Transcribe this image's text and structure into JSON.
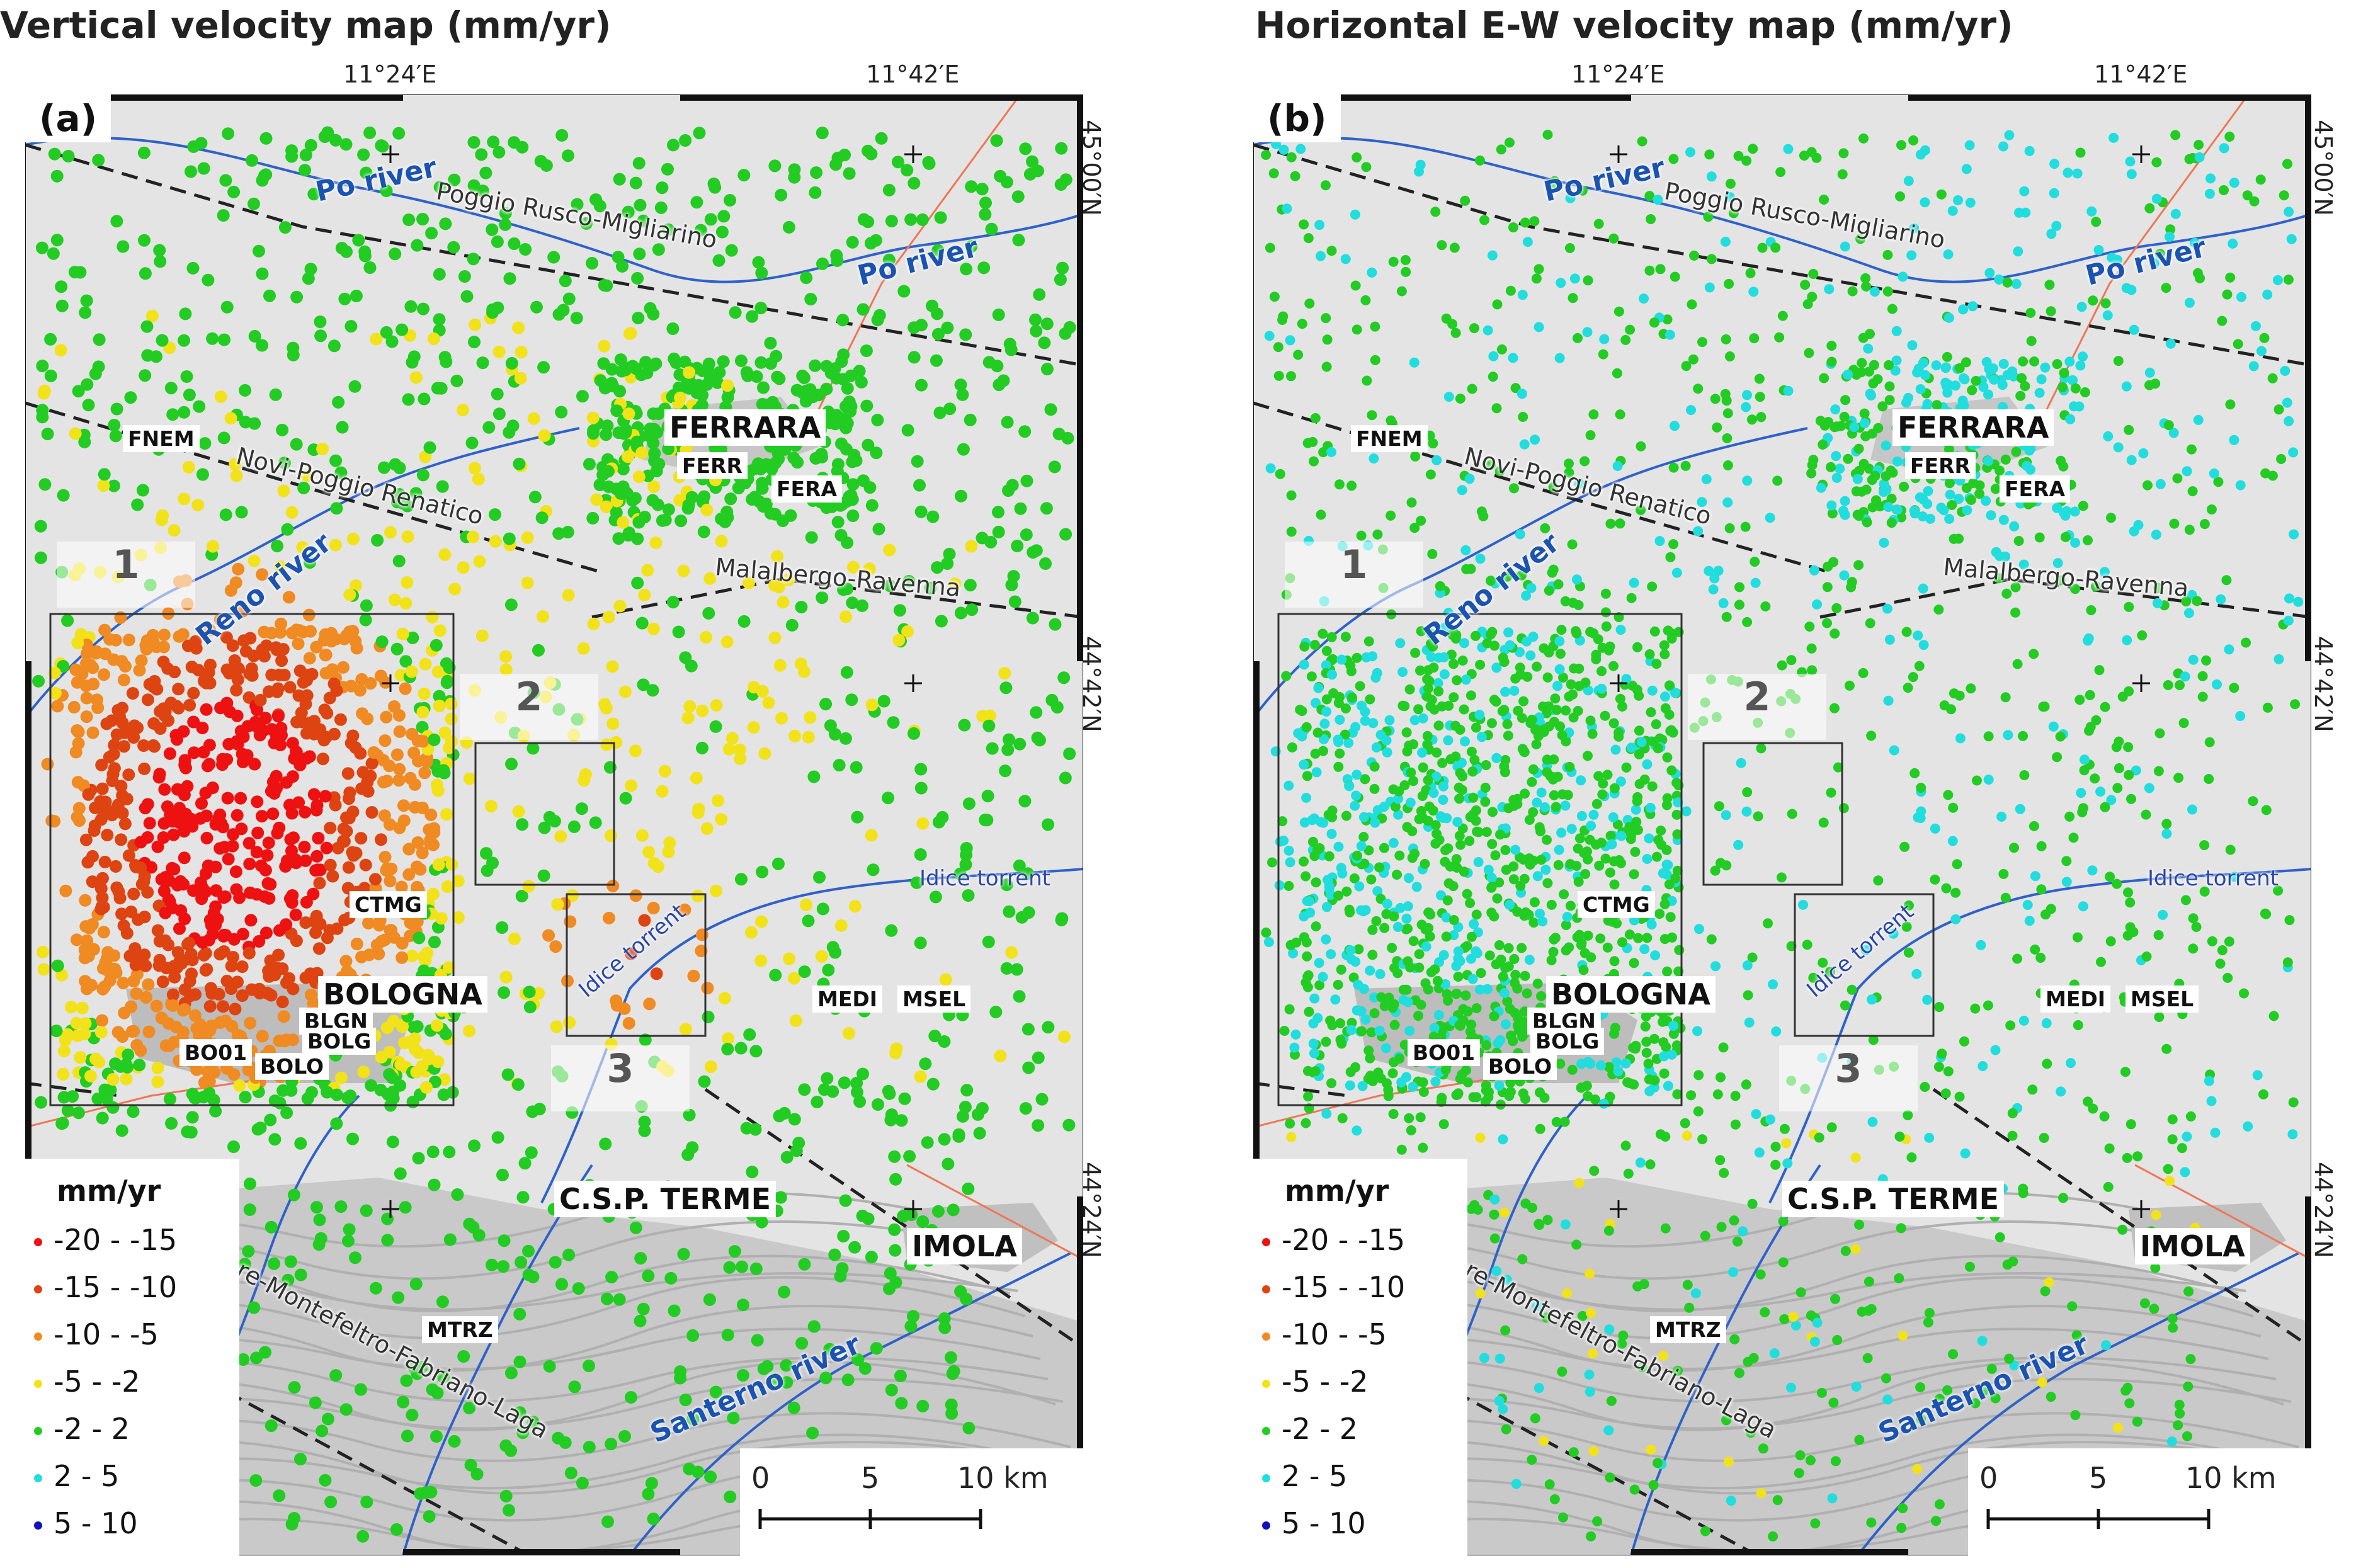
{
  "colors": {
    "v_-20_-15": "#ee1111",
    "v_-15_-10": "#dd4411",
    "v_-10_-5": "#f08a22",
    "v_-5_-2": "#f2e21a",
    "v_-2_2": "#22cc22",
    "v_2_5": "#22dddd",
    "v_5_10": "#1111bb",
    "river_blue": "#2f62c8",
    "fault_dash": "#222222"
  },
  "panels": [
    {
      "title": "Vertical velocity map (mm/yr)",
      "label": "(a)",
      "dominant_classes": [
        "-20 - -15",
        "-15 - -10",
        "-10 - -5",
        "-5 - -2",
        "-2 - 2"
      ]
    },
    {
      "title": "Horizontal E-W velocity map (mm/yr)",
      "label": "(b)",
      "dominant_classes": [
        "-2 - 2",
        "2 - 5"
      ]
    }
  ],
  "coordinates": {
    "lon_1": "11°24′E",
    "lon_2": "11°42′E",
    "lat_1": "45°00′N",
    "lat_2": "44°42′N",
    "lat_3": "44°24′N"
  },
  "places": {
    "ferrara": "FERRARA",
    "bologna": "BOLOGNA",
    "csp_terme": "C.S.P. TERME",
    "imola": "IMOLA"
  },
  "stations": [
    "FNEM",
    "FERR",
    "FERA",
    "CTMG",
    "BLGN",
    "BOLG",
    "BO01",
    "BOLO",
    "MEDI",
    "MSEL",
    "MTRZ"
  ],
  "rivers": {
    "po_1": "Po river",
    "po_2": "Po river",
    "reno": "Reno river",
    "idice_1": "Idice torrent",
    "idice_2": "Idice torrent",
    "santerno": "Santerno river"
  },
  "faults": {
    "f1": "Poggio Rusco-Migliarino",
    "f2": "Novi-Poggio Renatico",
    "f3": "Malalbergo-Ravenna",
    "f4": "Bore-Montefeltro-Fabriano-Laga"
  },
  "zones": [
    "1",
    "2",
    "3"
  ],
  "legend": {
    "title": "mm/yr",
    "items": [
      {
        "label": "-20 - -15",
        "color": "#ee1111"
      },
      {
        "label": "-15 - -10",
        "color": "#dd4411"
      },
      {
        "label": "-10 - -5",
        "color": "#f08a22"
      },
      {
        "label": "-5 - -2",
        "color": "#f2e21a"
      },
      {
        "label": "-2 - 2",
        "color": "#22cc22"
      },
      {
        "label": "2 - 5",
        "color": "#22dddd"
      },
      {
        "label": "5 - 10",
        "color": "#1111bb"
      }
    ]
  },
  "scale_bar": {
    "ticks": [
      "0",
      "5",
      "10 km"
    ]
  }
}
